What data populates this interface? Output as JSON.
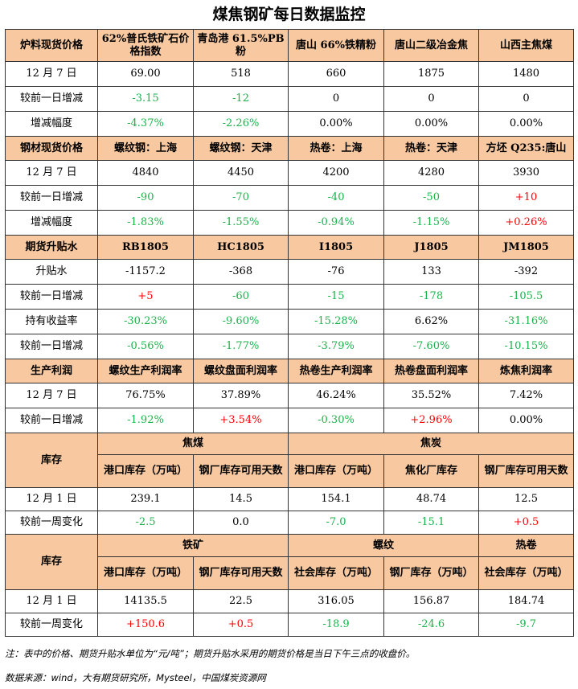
{
  "title": "煤焦钢矿每日数据监控",
  "s1": {
    "header": [
      "炉料现货价格",
      "62%普氏铁矿石价格指数",
      "青岛港 61.5%PB 粉",
      "唐山 66%铁精粉",
      "唐山二级冶金焦",
      "山西主焦煤"
    ],
    "rows": [
      {
        "label": "12 月 7 日",
        "cells": [
          "69.00",
          "518",
          "660",
          "1875",
          "1480"
        ]
      },
      {
        "label": "较前一日增减",
        "cells": [
          "-3.15",
          "-12",
          "0",
          "0",
          "0"
        ]
      },
      {
        "label": "增减幅度",
        "cells": [
          "-4.37%",
          "-2.26%",
          "0.00%",
          "0.00%",
          "0.00%"
        ]
      }
    ]
  },
  "s2": {
    "header": [
      "钢材现货价格",
      "螺纹钢：上海",
      "螺纹钢：天津",
      "热卷：上海",
      "热卷：天津",
      "方坯 Q235:唐山"
    ],
    "rows": [
      {
        "label": "12 月 7 日",
        "cells": [
          "4840",
          "4450",
          "4200",
          "4280",
          "3930"
        ]
      },
      {
        "label": "较前一日增减",
        "cells": [
          "-90",
          "-70",
          "-40",
          "-50",
          "+10"
        ]
      },
      {
        "label": "增减幅度",
        "cells": [
          "-1.83%",
          "-1.55%",
          "-0.94%",
          "-1.15%",
          "+0.26%"
        ]
      }
    ]
  },
  "s3": {
    "header": [
      "期货升贴水",
      "RB1805",
      "HC1805",
      "I1805",
      "J1805",
      "JM1805"
    ],
    "rows": [
      {
        "label": "升贴水",
        "cells": [
          "-1157.2",
          "-368",
          "-76",
          "133",
          "-392"
        ]
      },
      {
        "label": "较前一日增减",
        "cells": [
          "+5",
          "-60",
          "-15",
          "-178",
          "-105.5"
        ]
      },
      {
        "label": "持有收益率",
        "cells": [
          "-30.23%",
          "-9.60%",
          "-15.28%",
          "6.62%",
          "-31.16%"
        ]
      },
      {
        "label": "较前一日增减",
        "cells": [
          "-0.56%",
          "-1.77%",
          "-3.79%",
          "-7.60%",
          "-10.15%"
        ]
      }
    ]
  },
  "s4": {
    "header": [
      "生产利润",
      "螺纹生产利润率",
      "螺纹盘面利润率",
      "热卷生产利润率",
      "热卷盘面利润率",
      "炼焦利润率"
    ],
    "rows": [
      {
        "label": "12 月 7 日",
        "cells": [
          "76.75%",
          "37.89%",
          "46.24%",
          "35.52%",
          "7.42%"
        ]
      },
      {
        "label": "较前一日增减",
        "cells": [
          "-1.92%",
          "+3.54%",
          "-0.30%",
          "+2.96%",
          "0.00%"
        ]
      }
    ]
  },
  "s5": {
    "label": "库存",
    "groups": [
      "焦煤",
      "焦炭"
    ],
    "subs": [
      "港口库存（万吨）",
      "钢厂库存可用天数",
      "港口库存（万吨）",
      "焦化厂库存",
      "钢厂库存可用天数"
    ],
    "rows": [
      {
        "label": "12 月 1 日",
        "cells": [
          "239.1",
          "14.5",
          "154.1",
          "48.74",
          "12.5"
        ]
      },
      {
        "label": "较前一周变化",
        "cells": [
          "-2.5",
          "0.0",
          "-7.0",
          "-15.1",
          "+0.5"
        ]
      }
    ]
  },
  "s6": {
    "label": "库存",
    "groups": [
      "铁矿",
      "螺纹",
      "热卷"
    ],
    "subs": [
      "港口库存（万吨）",
      "钢厂库存可用天数",
      "社会库存（万吨）",
      "钢厂库存（万吨）",
      "社会库存（万吨）"
    ],
    "rows": [
      {
        "label": "12 月 1 日",
        "cells": [
          "14135.5",
          "22.5",
          "316.05",
          "156.87",
          "184.74"
        ]
      },
      {
        "label": "较前一周变化",
        "cells": [
          "+150.6",
          "+0.5",
          "-18.9",
          "-24.6",
          "-9.7"
        ]
      }
    ]
  },
  "note": "注：表中的价格、期货升贴水单位为“元/吨”；期货升贴水采用的期货价格是当日下午三点的收盘价。",
  "source": "数据来源：wind，大有期货研究所，Mysteel，中国煤炭资源网",
  "colors": {
    "header_bg": "#f8c9a0",
    "down": "#1bb34a",
    "up": "#ff0000"
  }
}
